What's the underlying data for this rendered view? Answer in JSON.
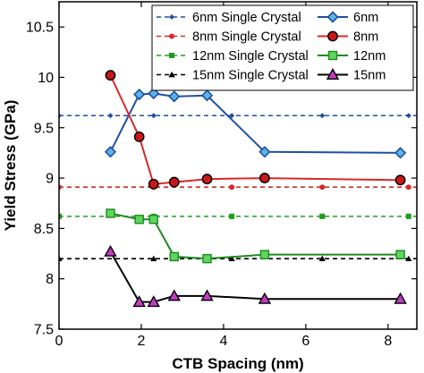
{
  "chart_data": {
    "type": "line",
    "xlabel": "CTB Spacing (nm)",
    "ylabel": "Yield Stress (GPa)",
    "xlim": [
      0,
      8.7
    ],
    "ylim": [
      7.5,
      10.75
    ],
    "xticks": [
      0,
      2,
      4,
      6,
      8
    ],
    "yticks": [
      7.5,
      8,
      8.5,
      9,
      9.5,
      10,
      10.5
    ],
    "xtick_labels": [
      "0",
      "2",
      "4",
      "6",
      "8"
    ],
    "ytick_labels": [
      "7.5",
      "8",
      "8.5",
      "9",
      "9.5",
      "10",
      "10.5"
    ],
    "grid": false,
    "legend_position": "top-right",
    "series": [
      {
        "name": "6nm Single Crystal",
        "kind": "reference",
        "color": "#1f4fa0",
        "marker": "diamond-small",
        "x": [
          0,
          1.25,
          2.3,
          4.2,
          6.4,
          8.5
        ],
        "y": [
          9.62,
          9.62,
          9.62,
          9.62,
          9.62,
          9.62
        ]
      },
      {
        "name": "8nm Single Crystal",
        "kind": "reference",
        "color": "#d42a2a",
        "marker": "circle-small",
        "x": [
          0,
          2.3,
          4.2,
          6.4,
          8.5
        ],
        "y": [
          8.91,
          8.91,
          8.91,
          8.91,
          8.91
        ]
      },
      {
        "name": "12nm Single Crystal",
        "kind": "reference",
        "color": "#1e9e1e",
        "marker": "square-small",
        "x": [
          0,
          2.3,
          4.2,
          6.4,
          8.5
        ],
        "y": [
          8.62,
          8.62,
          8.62,
          8.62,
          8.62
        ]
      },
      {
        "name": "15nm Single Crystal",
        "kind": "reference",
        "color": "#000000",
        "marker": "triangle-small",
        "x": [
          0,
          2.3,
          4.2,
          6.4,
          8.5
        ],
        "y": [
          8.2,
          8.2,
          8.2,
          8.2,
          8.2
        ]
      },
      {
        "name": "6nm",
        "kind": "data",
        "color": "#1f4fa0",
        "fill": "#5ab4e8",
        "marker": "diamond",
        "x": [
          1.25,
          1.95,
          2.3,
          2.8,
          3.6,
          5.0,
          8.3
        ],
        "y": [
          9.26,
          9.83,
          9.84,
          9.81,
          9.82,
          9.26,
          9.25
        ]
      },
      {
        "name": "8nm",
        "kind": "data",
        "color": "#d42a2a",
        "fill": "#c81818",
        "marker": "circle",
        "x": [
          1.25,
          1.95,
          2.3,
          2.8,
          3.6,
          5.0,
          8.3
        ],
        "y": [
          10.02,
          9.41,
          8.94,
          8.96,
          8.99,
          9.0,
          8.98
        ]
      },
      {
        "name": "12nm",
        "kind": "data",
        "color": "#1e8a1e",
        "fill": "#5ed65e",
        "marker": "square",
        "x": [
          1.25,
          1.95,
          2.3,
          2.8,
          3.6,
          5.0,
          8.3
        ],
        "y": [
          8.65,
          8.59,
          8.59,
          8.22,
          8.2,
          8.24,
          8.24
        ]
      },
      {
        "name": "15nm",
        "kind": "data",
        "color": "#000000",
        "fill": "#c43cc4",
        "marker": "triangle",
        "x": [
          1.25,
          1.95,
          2.3,
          2.8,
          3.6,
          5.0,
          8.3
        ],
        "y": [
          8.27,
          7.77,
          7.77,
          7.83,
          7.83,
          7.8,
          7.8
        ]
      }
    ]
  }
}
